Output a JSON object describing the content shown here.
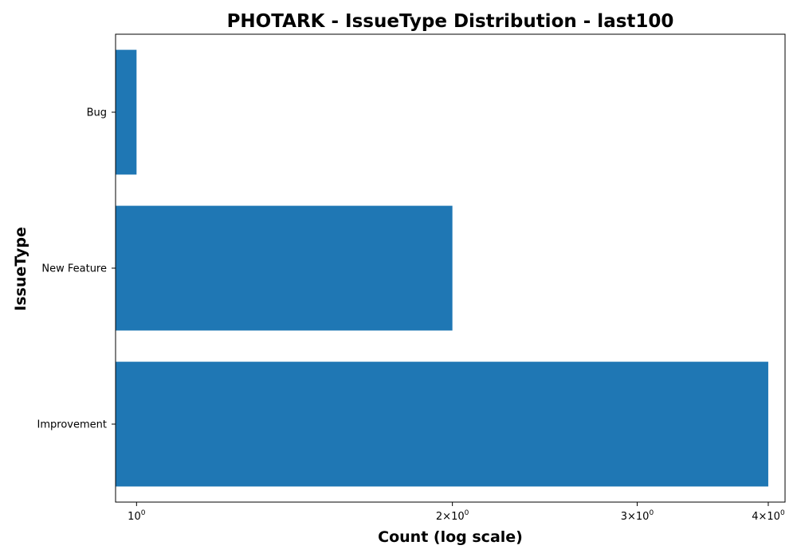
{
  "chart_data": {
    "type": "bar",
    "orientation": "horizontal",
    "title": "PHOTARK - IssueType Distribution - last100",
    "xlabel": "Count (log scale)",
    "ylabel": "IssueType",
    "x_scale": "log",
    "xlim": [
      0.955,
      4.15
    ],
    "categories": [
      "Bug",
      "New Feature",
      "Improvement"
    ],
    "values": [
      1,
      2,
      4
    ],
    "bar_color": "#1f77b4",
    "x_ticks": [
      {
        "value": 1,
        "coef": "",
        "base": "10",
        "exp": "0"
      },
      {
        "value": 2,
        "coef": "2×",
        "base": "10",
        "exp": "0"
      },
      {
        "value": 3,
        "coef": "3×",
        "base": "10",
        "exp": "0"
      },
      {
        "value": 4,
        "coef": "4×",
        "base": "10",
        "exp": "0"
      }
    ],
    "grid": false,
    "legend": "none"
  }
}
